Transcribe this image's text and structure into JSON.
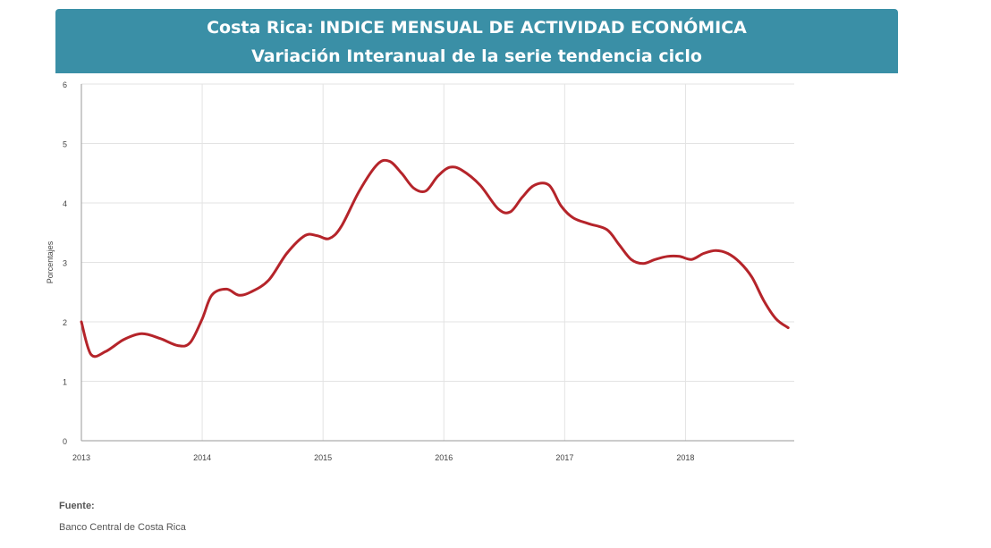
{
  "chart_data": {
    "type": "line",
    "title": "Costa Rica: INDICE MENSUAL DE ACTIVIDAD ECONÓMICA",
    "subtitle": "Variación Interanual de la serie tendencia ciclo",
    "ylabel": "Porcentajes",
    "xlabel": "",
    "ylim": [
      0,
      6
    ],
    "xlim": [
      2013.0,
      2018.9
    ],
    "yticks": [
      0,
      1,
      2,
      3,
      4,
      5,
      6
    ],
    "xticks": [
      "2013",
      "2014",
      "2015",
      "2016",
      "2017",
      "2018"
    ],
    "grid": true,
    "colors": {
      "line": "#b5242a",
      "banner": "#3a8fa6",
      "grid": "#e3e3e3"
    },
    "series": [
      {
        "x": [
          2013.0,
          2013.08,
          2013.2,
          2013.35,
          2013.5,
          2013.65,
          2013.8,
          2013.9,
          2014.0,
          2014.08,
          2014.2,
          2014.3,
          2014.4,
          2014.55,
          2014.7,
          2014.85,
          2014.95,
          2015.05,
          2015.15,
          2015.3,
          2015.45,
          2015.55,
          2015.65,
          2015.75,
          2015.85,
          2015.95,
          2016.05,
          2016.15,
          2016.3,
          2016.45,
          2016.55,
          2016.65,
          2016.75,
          2016.87,
          2016.97,
          2017.07,
          2017.2,
          2017.35,
          2017.45,
          2017.55,
          2017.65,
          2017.75,
          2017.85,
          2017.95,
          2018.05,
          2018.15,
          2018.25,
          2018.35,
          2018.45,
          2018.55,
          2018.65,
          2018.75,
          2018.85
        ],
        "values": [
          2.0,
          1.45,
          1.5,
          1.7,
          1.8,
          1.72,
          1.6,
          1.65,
          2.05,
          2.45,
          2.55,
          2.45,
          2.5,
          2.7,
          3.15,
          3.45,
          3.45,
          3.4,
          3.6,
          4.2,
          4.65,
          4.7,
          4.5,
          4.25,
          4.2,
          4.45,
          4.6,
          4.55,
          4.3,
          3.9,
          3.85,
          4.1,
          4.3,
          4.3,
          3.95,
          3.75,
          3.65,
          3.55,
          3.3,
          3.05,
          2.98,
          3.05,
          3.1,
          3.1,
          3.05,
          3.15,
          3.2,
          3.15,
          3.0,
          2.75,
          2.35,
          2.05,
          1.9
        ]
      }
    ]
  },
  "source": {
    "label": "Fuente:",
    "value": "Banco Central de Costa Rica"
  }
}
